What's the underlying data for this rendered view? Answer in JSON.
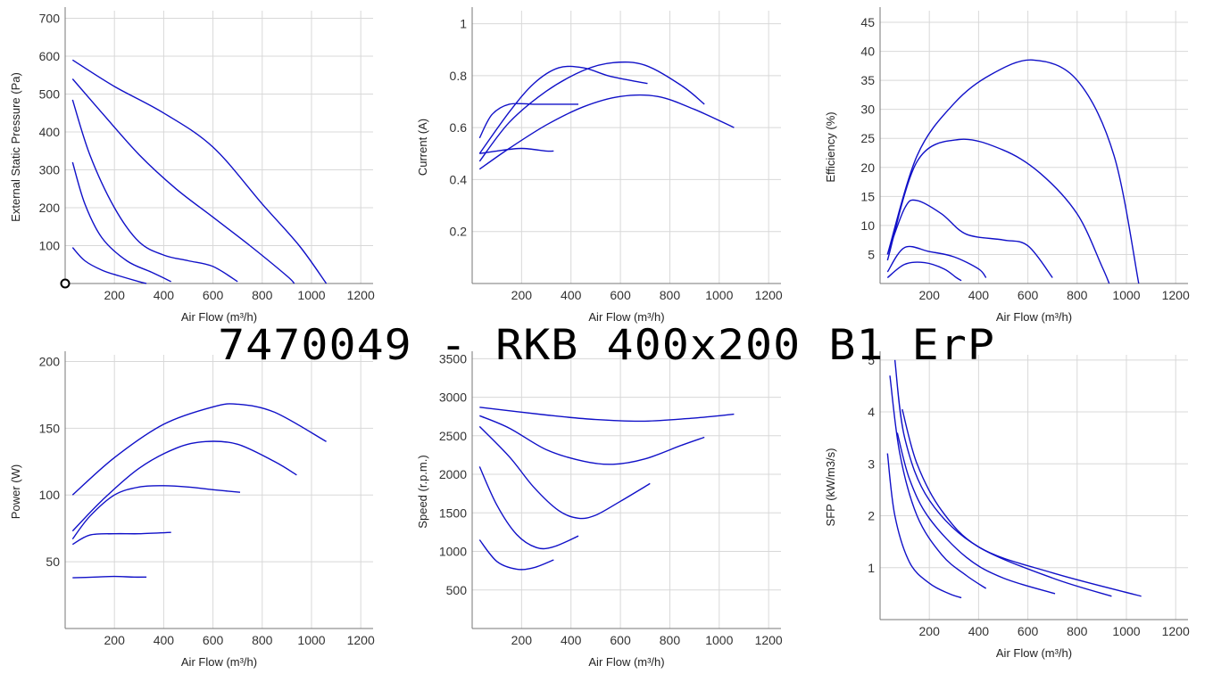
{
  "title": "7470049 -  RKB 400x200 B1 ErP",
  "style": {
    "line_color": "#1010c8",
    "grid_color": "#d8d8d8",
    "axis_color": "#777777"
  },
  "chart_data": [
    {
      "type": "line",
      "id": "pressure",
      "xlabel": "Air Flow (m³/h)",
      "ylabel": "External Static Pressure (Pa)",
      "xlim": [
        0,
        1250
      ],
      "ylim": [
        0,
        720
      ],
      "xticks": [
        200,
        400,
        600,
        800,
        1000,
        1200
      ],
      "yticks": [
        100,
        200,
        300,
        400,
        500,
        600,
        700
      ],
      "origin_marker": true,
      "series": [
        {
          "x": [
            30,
            200,
            400,
            600,
            800,
            950,
            1060
          ],
          "y": [
            590,
            520,
            450,
            360,
            210,
            100,
            0
          ]
        },
        {
          "x": [
            30,
            150,
            300,
            450,
            600,
            750,
            900,
            930
          ],
          "y": [
            540,
            450,
            340,
            250,
            175,
            100,
            20,
            0
          ]
        },
        {
          "x": [
            30,
            100,
            200,
            300,
            400,
            500,
            600,
            700
          ],
          "y": [
            485,
            340,
            200,
            110,
            75,
            60,
            45,
            5
          ]
        },
        {
          "x": [
            30,
            80,
            150,
            250,
            350,
            430
          ],
          "y": [
            320,
            210,
            120,
            60,
            30,
            5
          ]
        },
        {
          "x": [
            30,
            80,
            150,
            220,
            300,
            330
          ],
          "y": [
            95,
            60,
            35,
            20,
            5,
            0
          ]
        }
      ]
    },
    {
      "type": "line",
      "id": "current",
      "xlabel": "Air Flow (m³/h)",
      "ylabel": "Current (A)",
      "xlim": [
        0,
        1250
      ],
      "ylim": [
        0,
        1.05
      ],
      "xticks": [
        200,
        400,
        600,
        800,
        1000,
        1200
      ],
      "yticks": [
        0.2,
        0.4,
        0.6,
        0.8,
        1
      ],
      "series": [
        {
          "x": [
            30,
            150,
            300,
            450,
            600,
            750,
            900,
            1060
          ],
          "y": [
            0.44,
            0.52,
            0.61,
            0.68,
            0.72,
            0.72,
            0.67,
            0.6
          ]
        },
        {
          "x": [
            30,
            150,
            300,
            450,
            570,
            700,
            850,
            940
          ],
          "y": [
            0.47,
            0.62,
            0.74,
            0.82,
            0.85,
            0.84,
            0.76,
            0.69
          ]
        },
        {
          "x": [
            30,
            150,
            250,
            350,
            450,
            550,
            650,
            710
          ],
          "y": [
            0.5,
            0.66,
            0.77,
            0.83,
            0.83,
            0.8,
            0.78,
            0.77
          ]
        },
        {
          "x": [
            30,
            80,
            150,
            250,
            350,
            430
          ],
          "y": [
            0.56,
            0.65,
            0.69,
            0.69,
            0.69,
            0.69
          ]
        },
        {
          "x": [
            30,
            100,
            200,
            300,
            330
          ],
          "y": [
            0.5,
            0.51,
            0.52,
            0.51,
            0.51
          ]
        }
      ]
    },
    {
      "type": "line",
      "id": "efficiency",
      "xlabel": "Air Flow (m³/h)",
      "ylabel": "Efficiency (%)",
      "xlim": [
        0,
        1250
      ],
      "ylim": [
        0,
        47
      ],
      "xticks": [
        200,
        400,
        600,
        800,
        1000,
        1200
      ],
      "yticks": [
        5,
        10,
        15,
        20,
        25,
        30,
        35,
        40,
        45
      ],
      "series": [
        {
          "x": [
            30,
            150,
            300,
            450,
            620,
            800,
            950,
            1050
          ],
          "y": [
            5,
            22,
            31,
            36,
            38.5,
            35,
            22,
            0
          ]
        },
        {
          "x": [
            30,
            150,
            320,
            500,
            650,
            800,
            900,
            930
          ],
          "y": [
            4,
            21,
            24.8,
            23,
            19,
            12,
            3,
            0
          ]
        },
        {
          "x": [
            30,
            100,
            150,
            250,
            350,
            500,
            600,
            700
          ],
          "y": [
            5,
            13,
            14.3,
            12,
            8.5,
            7.5,
            6.5,
            1
          ]
        },
        {
          "x": [
            30,
            100,
            200,
            300,
            400,
            430
          ],
          "y": [
            2,
            6.2,
            5.5,
            4.6,
            2.5,
            1
          ]
        },
        {
          "x": [
            30,
            100,
            180,
            260,
            310,
            330
          ],
          "y": [
            1,
            3.3,
            3.6,
            2.5,
            1,
            0.5
          ]
        }
      ]
    },
    {
      "type": "line",
      "id": "power",
      "xlabel": "Air Flow (m³/h)",
      "ylabel": "Power (W)",
      "xlim": [
        0,
        1250
      ],
      "ylim": [
        0,
        205
      ],
      "xticks": [
        200,
        400,
        600,
        800,
        1000,
        1200
      ],
      "yticks": [
        50,
        100,
        150,
        200
      ],
      "series": [
        {
          "x": [
            30,
            200,
            400,
            600,
            700,
            850,
            1060
          ],
          "y": [
            100,
            128,
            153,
            166,
            168,
            162,
            140
          ]
        },
        {
          "x": [
            30,
            150,
            300,
            450,
            570,
            700,
            850,
            940
          ],
          "y": [
            73,
            96,
            120,
            135,
            140,
            138,
            125,
            115
          ]
        },
        {
          "x": [
            30,
            100,
            200,
            300,
            400,
            500,
            600,
            710
          ],
          "y": [
            67,
            84,
            100,
            106,
            107,
            106,
            104,
            102
          ]
        },
        {
          "x": [
            30,
            100,
            200,
            300,
            430
          ],
          "y": [
            63,
            70,
            71,
            71,
            72
          ]
        },
        {
          "x": [
            30,
            120,
            200,
            280,
            330
          ],
          "y": [
            38,
            38.5,
            39,
            38.5,
            38.5
          ]
        }
      ]
    },
    {
      "type": "line",
      "id": "speed",
      "xlabel": "Air Flow (m³/h)",
      "ylabel": "Speed (r.p.m.)",
      "xlim": [
        0,
        1250
      ],
      "ylim": [
        0,
        3550
      ],
      "xticks": [
        200,
        400,
        600,
        800,
        1000,
        1200
      ],
      "yticks": [
        500,
        1000,
        1500,
        2000,
        2500,
        3000,
        3500
      ],
      "series": [
        {
          "x": [
            30,
            300,
            500,
            700,
            900,
            1060
          ],
          "y": [
            2870,
            2770,
            2710,
            2690,
            2730,
            2780
          ]
        },
        {
          "x": [
            30,
            150,
            300,
            450,
            570,
            700,
            850,
            940
          ],
          "y": [
            2760,
            2600,
            2320,
            2170,
            2130,
            2200,
            2380,
            2480
          ]
        },
        {
          "x": [
            30,
            150,
            250,
            350,
            430,
            500,
            600,
            720
          ],
          "y": [
            2620,
            2230,
            1830,
            1530,
            1430,
            1470,
            1650,
            1880
          ]
        },
        {
          "x": [
            30,
            100,
            180,
            260,
            330,
            430
          ],
          "y": [
            2100,
            1600,
            1220,
            1050,
            1060,
            1200
          ]
        },
        {
          "x": [
            30,
            100,
            180,
            250,
            330
          ],
          "y": [
            1150,
            870,
            770,
            790,
            890
          ]
        }
      ]
    },
    {
      "type": "line",
      "id": "sfp",
      "xlabel": "Air Flow (m³/h)",
      "ylabel": "SFP (kW/m3/s)",
      "xlim": [
        0,
        1250
      ],
      "ylim": [
        0,
        5.1
      ],
      "xticks": [
        200,
        400,
        600,
        800,
        1000,
        1200
      ],
      "yticks": [
        1,
        2,
        3,
        4,
        5
      ],
      "series": [
        {
          "x": [
            60,
            100,
            200,
            400,
            700,
            1060
          ],
          "y": [
            5,
            3.5,
            2.3,
            1.4,
            0.9,
            0.45
          ]
        },
        {
          "x": [
            90,
            150,
            250,
            400,
            700,
            940
          ],
          "y": [
            4.05,
            3.0,
            2.1,
            1.4,
            0.8,
            0.45
          ]
        },
        {
          "x": [
            70,
            120,
            200,
            350,
            500,
            710
          ],
          "y": [
            3.6,
            2.7,
            1.95,
            1.2,
            0.8,
            0.5
          ]
        },
        {
          "x": [
            40,
            80,
            150,
            250,
            350,
            430
          ],
          "y": [
            4.7,
            3.2,
            2.0,
            1.25,
            0.85,
            0.6
          ]
        },
        {
          "x": [
            30,
            60,
            120,
            200,
            280,
            330
          ],
          "y": [
            3.2,
            2.0,
            1.1,
            0.7,
            0.5,
            0.42
          ]
        }
      ]
    }
  ]
}
